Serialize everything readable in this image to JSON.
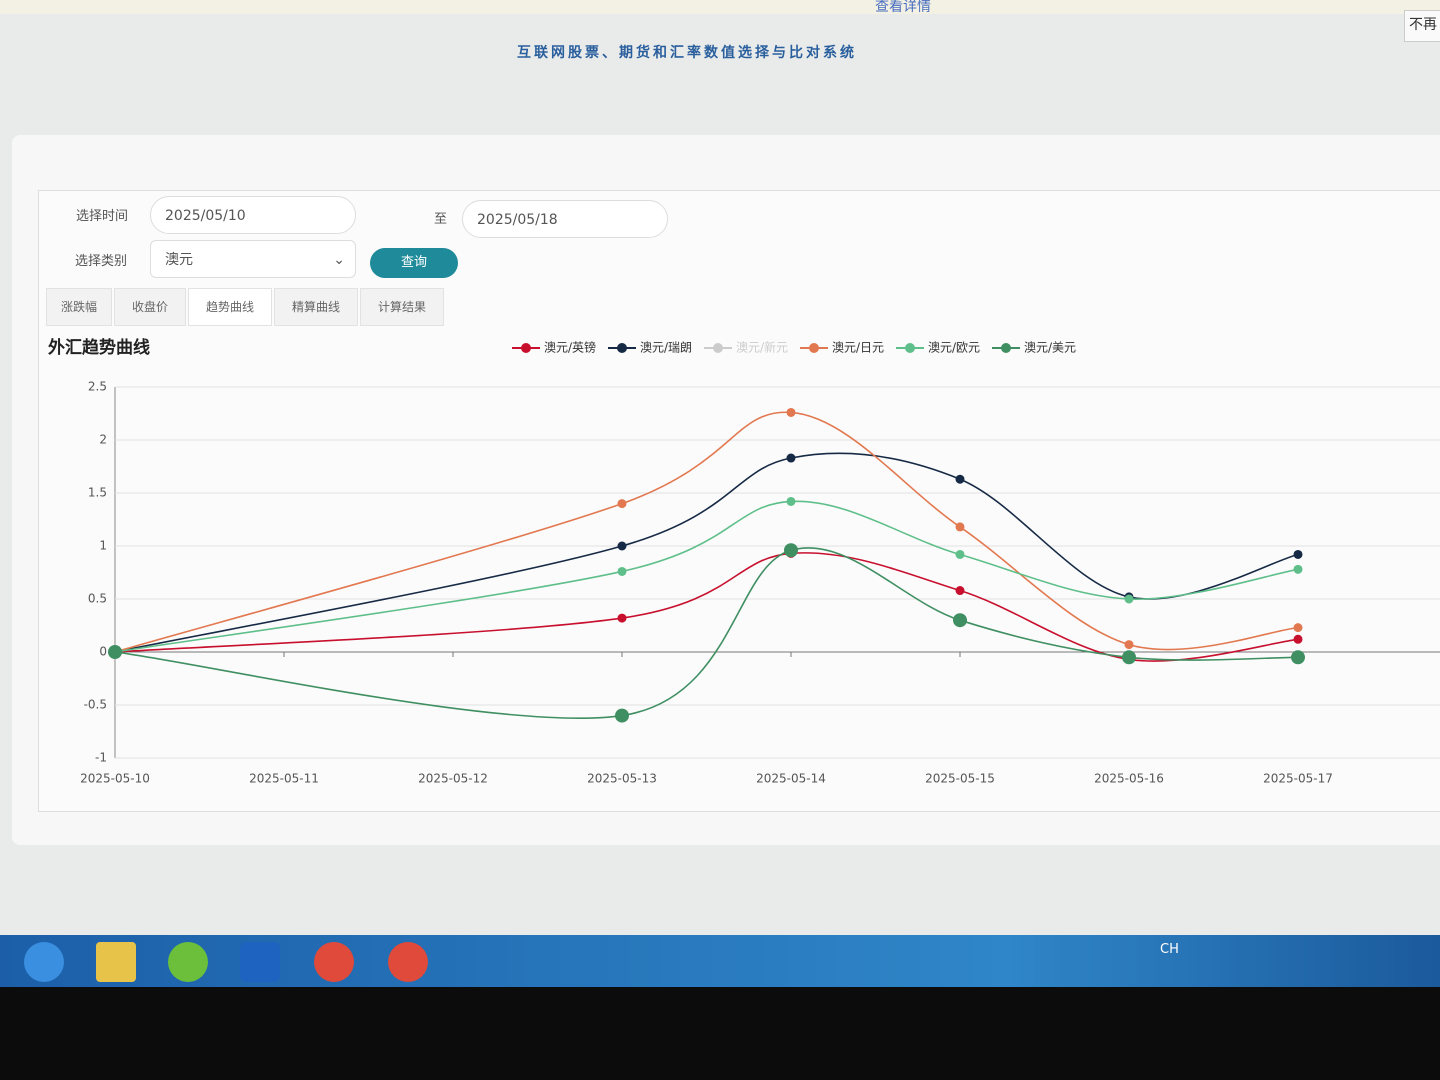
{
  "notice": {
    "link": "查看详情",
    "dismiss": "不再"
  },
  "header": {
    "title": "互联网股票、期货和汇率数值选择与比对系统"
  },
  "form": {
    "time_label": "选择时间",
    "start": "2025/05/10",
    "to": "至",
    "end": "2025/05/18",
    "category_label": "选择类别",
    "category": "澳元",
    "query": "查询"
  },
  "tabs": [
    "涨跌幅",
    "收盘价",
    "趋势曲线",
    "精算曲线",
    "计算结果"
  ],
  "taskbar": {
    "lang": "CH"
  },
  "chart_data": {
    "type": "line",
    "title": "外汇趋势曲线",
    "x": [
      "2025-05-10",
      "2025-05-13",
      "2025-05-14",
      "2025-05-15",
      "2025-05-16",
      "2025-05-17"
    ],
    "xticks": [
      "2025-05-10",
      "2025-05-11",
      "2025-05-12",
      "2025-05-13",
      "2025-05-14",
      "2025-05-15",
      "2025-05-16",
      "2025-05-17"
    ],
    "ylim": [
      -1,
      2.5
    ],
    "yticks": [
      -1,
      -0.5,
      0,
      0.5,
      1,
      1.5,
      2,
      2.5
    ],
    "grid": true,
    "series": [
      {
        "name": "澳元/英镑",
        "color": "#c8102e",
        "values": [
          0,
          0.32,
          0.93,
          0.58,
          -0.07,
          0.12
        ]
      },
      {
        "name": "澳元/瑞朗",
        "color": "#172a45",
        "values": [
          0,
          1.0,
          1.83,
          1.63,
          0.52,
          0.92
        ]
      },
      {
        "name": "澳元/新元",
        "color": "#cccccc",
        "hidden": true
      },
      {
        "name": "澳元/日元",
        "color": "#e2784f",
        "values": [
          0,
          1.4,
          2.26,
          1.18,
          0.07,
          0.23
        ]
      },
      {
        "name": "澳元/欧元",
        "color": "#5fbf8a",
        "values": [
          0,
          0.76,
          1.42,
          0.92,
          0.5,
          0.78
        ]
      },
      {
        "name": "澳元/美元",
        "color": "#3f8f62",
        "values": [
          0,
          -0.6,
          0.96,
          0.3,
          -0.05,
          -0.05
        ]
      }
    ]
  }
}
